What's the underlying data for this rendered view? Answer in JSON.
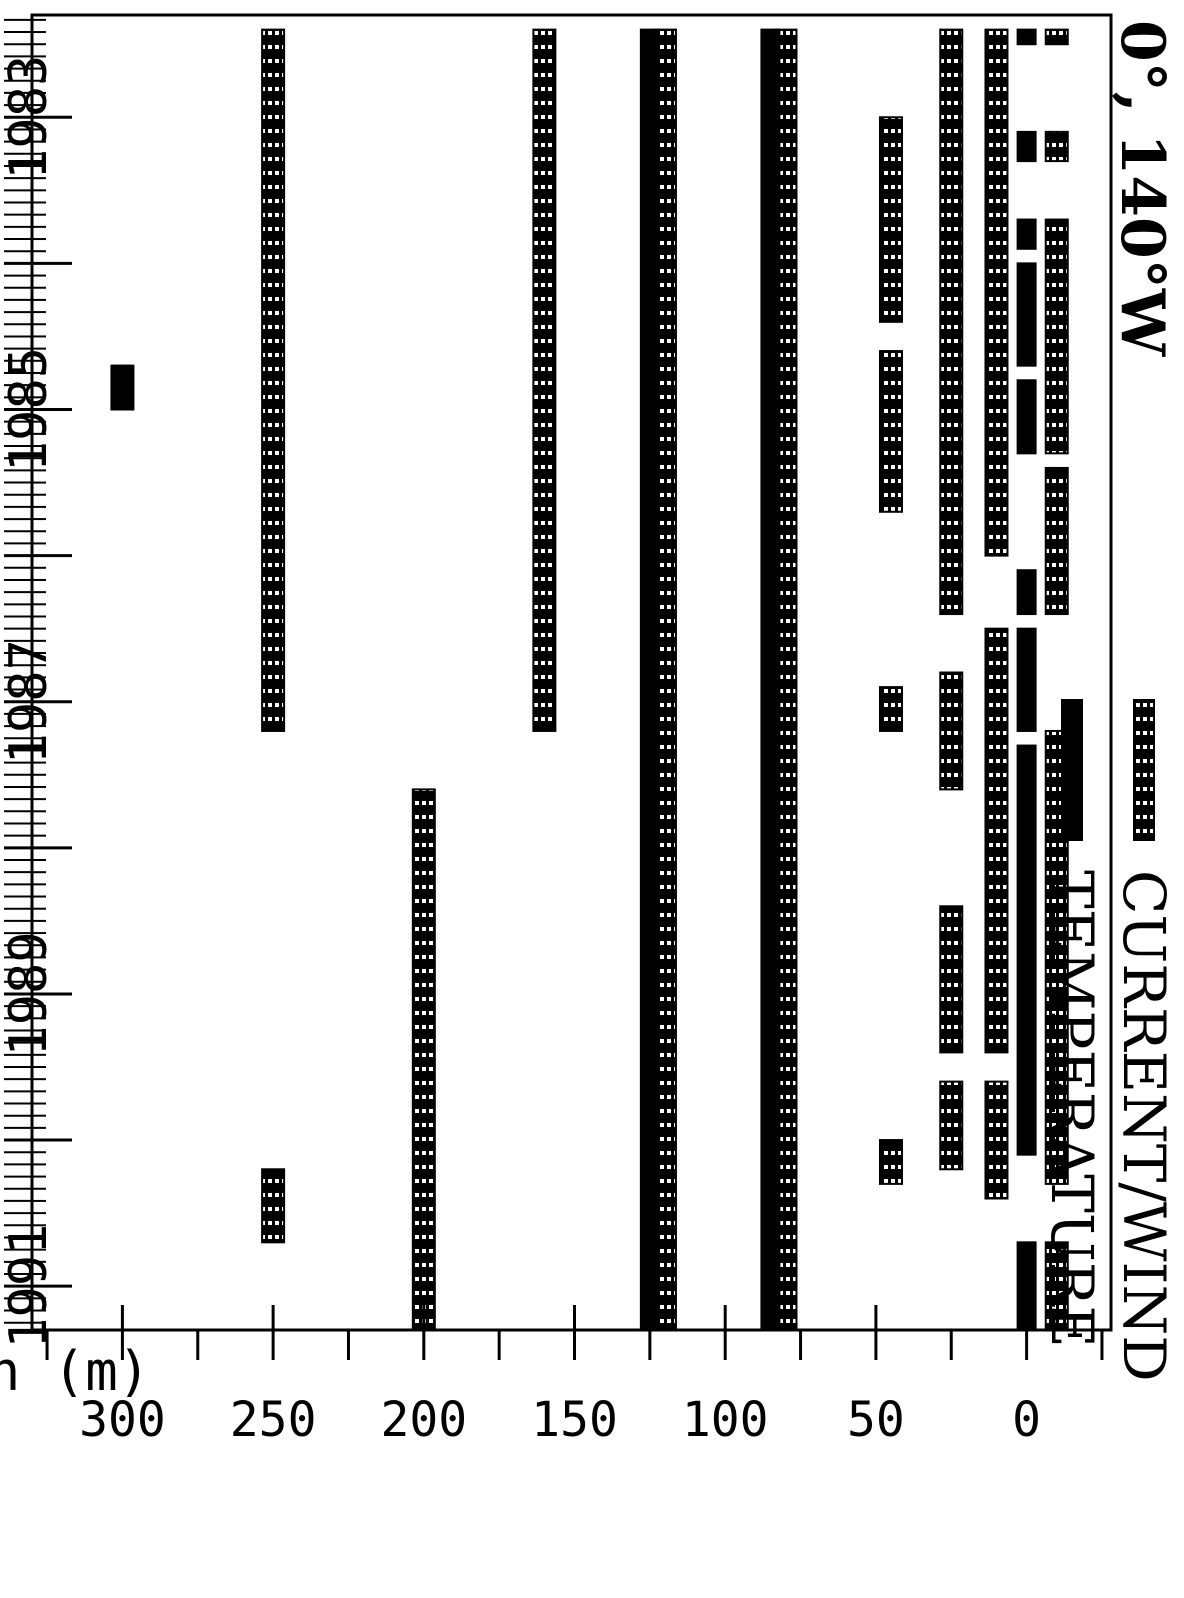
{
  "chart_data": {
    "type": "bar",
    "orientation": "rotated-90-clockwise",
    "title": "0°, 140°W",
    "ylabel": "Depth (m)",
    "xlabel": "",
    "ylim": [
      -28,
      330
    ],
    "xlim": [
      1982.3,
      1991.3
    ],
    "depth_ticks": [
      0,
      50,
      100,
      150,
      200,
      250,
      300
    ],
    "year_ticks": [
      "1983",
      "1985",
      "1987",
      "1989",
      "1991"
    ],
    "legend": {
      "placement": "top-right",
      "entries": [
        {
          "key": "current",
          "label": "CURRENT/WIND"
        },
        {
          "key": "temperature",
          "label": "TEMPERATURE"
        }
      ]
    },
    "series": [
      {
        "key": "current",
        "segments": [
          {
            "depth": -10,
            "start": 1982.4,
            "end": 1982.5
          },
          {
            "depth": -10,
            "start": 1983.1,
            "end": 1983.3
          },
          {
            "depth": -10,
            "start": 1983.7,
            "end": 1985.3
          },
          {
            "depth": -10,
            "start": 1985.4,
            "end": 1986.4
          },
          {
            "depth": -10,
            "start": 1987.2,
            "end": 1990.3
          },
          {
            "depth": -10,
            "start": 1990.7,
            "end": 1991.3
          },
          {
            "depth": 10,
            "start": 1982.4,
            "end": 1986.0
          },
          {
            "depth": 10,
            "start": 1986.5,
            "end": 1989.4
          },
          {
            "depth": 10,
            "start": 1989.6,
            "end": 1990.4
          },
          {
            "depth": 25,
            "start": 1982.4,
            "end": 1986.4
          },
          {
            "depth": 25,
            "start": 1986.8,
            "end": 1987.6
          },
          {
            "depth": 25,
            "start": 1988.4,
            "end": 1989.4
          },
          {
            "depth": 25,
            "start": 1989.6,
            "end": 1990.2
          },
          {
            "depth": 45,
            "start": 1983.0,
            "end": 1984.4
          },
          {
            "depth": 45,
            "start": 1984.6,
            "end": 1985.7
          },
          {
            "depth": 45,
            "start": 1986.9,
            "end": 1987.2
          },
          {
            "depth": 45,
            "start": 1990.0,
            "end": 1990.3
          },
          {
            "depth": 80,
            "start": 1982.4,
            "end": 1991.3
          },
          {
            "depth": 120,
            "start": 1982.4,
            "end": 1991.3
          },
          {
            "depth": 160,
            "start": 1982.4,
            "end": 1987.2
          },
          {
            "depth": 200,
            "start": 1987.6,
            "end": 1991.3
          },
          {
            "depth": 250,
            "start": 1982.4,
            "end": 1987.2
          },
          {
            "depth": 250,
            "start": 1990.2,
            "end": 1990.7
          },
          {
            "depth": 300,
            "start": 1984.7,
            "end": 1985.0
          }
        ]
      },
      {
        "key": "temperature",
        "segments": [
          {
            "depth": 0,
            "start": 1982.4,
            "end": 1982.5
          },
          {
            "depth": 0,
            "start": 1983.1,
            "end": 1983.3
          },
          {
            "depth": 0,
            "start": 1983.7,
            "end": 1983.9
          },
          {
            "depth": 0,
            "start": 1984.0,
            "end": 1984.7
          },
          {
            "depth": 0,
            "start": 1984.8,
            "end": 1985.3
          },
          {
            "depth": 0,
            "start": 1986.1,
            "end": 1986.4
          },
          {
            "depth": 0,
            "start": 1986.5,
            "end": 1987.2
          },
          {
            "depth": 0,
            "start": 1987.3,
            "end": 1990.1
          },
          {
            "depth": 0,
            "start": 1990.7,
            "end": 1991.3
          },
          {
            "depth": 85,
            "start": 1982.4,
            "end": 1991.3
          },
          {
            "depth": 125,
            "start": 1982.4,
            "end": 1991.3
          },
          {
            "depth": 300,
            "start": 1984.7,
            "end": 1985.0
          }
        ]
      }
    ]
  }
}
